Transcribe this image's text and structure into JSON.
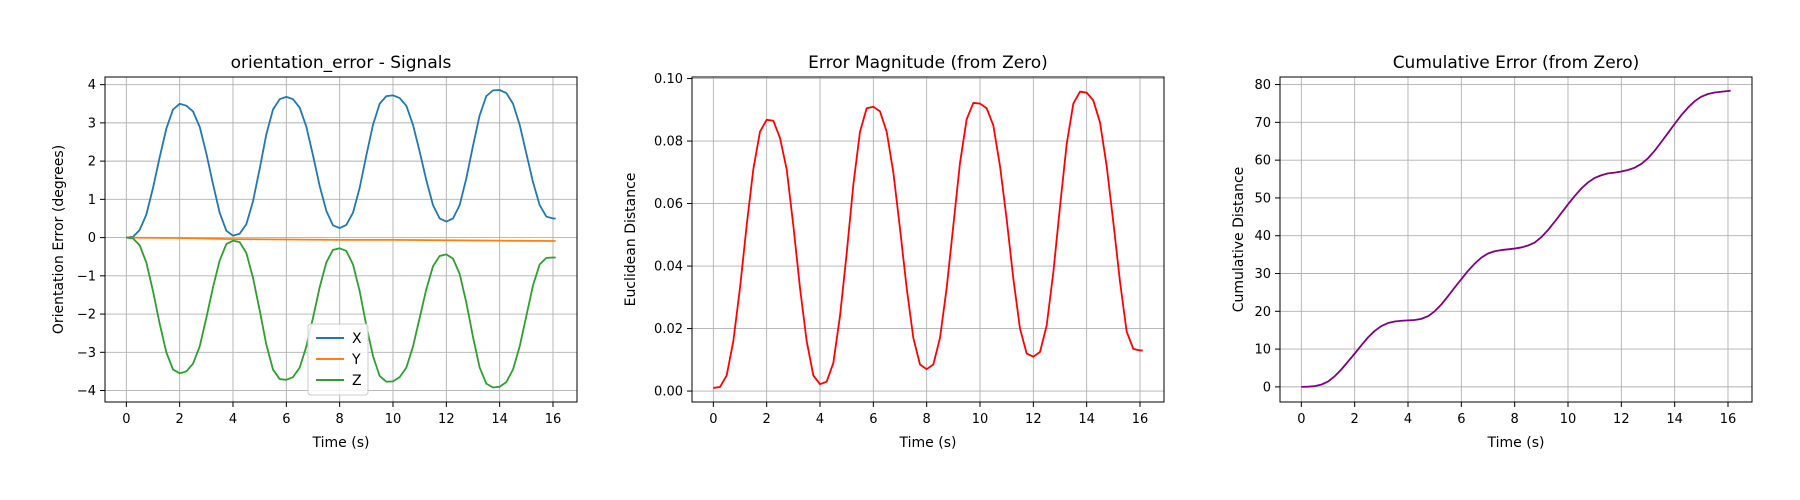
{
  "chart_data": [
    {
      "type": "line",
      "title": "orientation_error - Signals",
      "xlabel": "Time (s)",
      "ylabel": "Orientation Error (degrees)",
      "xlim": [
        -0.8,
        16.9
      ],
      "ylim": [
        -4.3,
        4.2
      ],
      "xticks": [
        0,
        2,
        4,
        6,
        8,
        10,
        12,
        14,
        16
      ],
      "yticks": [
        -4,
        -3,
        -2,
        -1,
        0,
        1,
        2,
        3,
        4
      ],
      "grid": true,
      "legend": "lower-center",
      "series": [
        {
          "name": "X",
          "color": "#1f77b4",
          "x": [
            0,
            0.25,
            0.5,
            0.75,
            1,
            1.25,
            1.5,
            1.75,
            2,
            2.25,
            2.5,
            2.75,
            3,
            3.25,
            3.5,
            3.75,
            4,
            4.25,
            4.5,
            4.75,
            5,
            5.25,
            5.5,
            5.75,
            6,
            6.25,
            6.5,
            6.75,
            7,
            7.25,
            7.5,
            7.75,
            8,
            8.25,
            8.5,
            8.75,
            9,
            9.25,
            9.5,
            9.75,
            10,
            10.25,
            10.5,
            10.75,
            11,
            11.25,
            11.5,
            11.75,
            12,
            12.25,
            12.5,
            12.75,
            13,
            13.25,
            13.5,
            13.75,
            14,
            14.25,
            14.5,
            14.75,
            15,
            15.25,
            15.5,
            15.75,
            16,
            16.1
          ],
          "y": [
            0.0,
            0.02,
            0.2,
            0.6,
            1.3,
            2.1,
            2.85,
            3.35,
            3.5,
            3.45,
            3.3,
            2.9,
            2.2,
            1.4,
            0.65,
            0.18,
            0.05,
            0.1,
            0.35,
            0.95,
            1.8,
            2.7,
            3.35,
            3.62,
            3.68,
            3.62,
            3.4,
            2.9,
            2.15,
            1.35,
            0.7,
            0.32,
            0.25,
            0.33,
            0.65,
            1.3,
            2.15,
            2.95,
            3.5,
            3.7,
            3.72,
            3.65,
            3.45,
            2.95,
            2.25,
            1.5,
            0.85,
            0.5,
            0.42,
            0.5,
            0.85,
            1.55,
            2.4,
            3.2,
            3.7,
            3.85,
            3.86,
            3.78,
            3.5,
            2.95,
            2.2,
            1.45,
            0.85,
            0.55,
            0.5,
            0.5
          ]
        },
        {
          "name": "Y",
          "color": "#ff7f0e",
          "x": [
            0,
            2,
            4,
            6,
            8,
            10,
            12,
            14,
            16,
            16.1
          ],
          "y": [
            0.0,
            -0.01,
            -0.04,
            -0.05,
            -0.06,
            -0.06,
            -0.07,
            -0.08,
            -0.09,
            -0.09
          ]
        },
        {
          "name": "Z",
          "color": "#2ca02c",
          "x": [
            0,
            0.25,
            0.5,
            0.75,
            1,
            1.25,
            1.5,
            1.75,
            2,
            2.25,
            2.5,
            2.75,
            3,
            3.25,
            3.5,
            3.75,
            4,
            4.25,
            4.5,
            4.75,
            5,
            5.25,
            5.5,
            5.75,
            6,
            6.25,
            6.5,
            6.75,
            7,
            7.25,
            7.5,
            7.75,
            8,
            8.25,
            8.5,
            8.75,
            9,
            9.25,
            9.5,
            9.75,
            10,
            10.25,
            10.5,
            10.75,
            11,
            11.25,
            11.5,
            11.75,
            12,
            12.25,
            12.5,
            12.75,
            13,
            13.25,
            13.5,
            13.75,
            14,
            14.25,
            14.5,
            14.75,
            15,
            15.25,
            15.5,
            15.75,
            16,
            16.1
          ],
          "y": [
            0.0,
            -0.02,
            -0.2,
            -0.65,
            -1.4,
            -2.25,
            -3.0,
            -3.45,
            -3.55,
            -3.5,
            -3.3,
            -2.85,
            -2.1,
            -1.3,
            -0.6,
            -0.17,
            -0.08,
            -0.12,
            -0.4,
            -1.05,
            -1.9,
            -2.8,
            -3.45,
            -3.7,
            -3.72,
            -3.65,
            -3.4,
            -2.85,
            -2.1,
            -1.3,
            -0.65,
            -0.32,
            -0.28,
            -0.35,
            -0.7,
            -1.4,
            -2.3,
            -3.1,
            -3.62,
            -3.77,
            -3.76,
            -3.65,
            -3.4,
            -2.85,
            -2.1,
            -1.35,
            -0.75,
            -0.48,
            -0.44,
            -0.55,
            -0.95,
            -1.7,
            -2.6,
            -3.4,
            -3.82,
            -3.92,
            -3.9,
            -3.78,
            -3.45,
            -2.85,
            -2.05,
            -1.25,
            -0.7,
            -0.53,
            -0.52,
            -0.52
          ]
        }
      ]
    },
    {
      "type": "line",
      "title": "Error Magnitude (from Zero)",
      "xlabel": "Time (s)",
      "ylabel": "Euclidean Distance",
      "xlim": [
        -0.8,
        16.9
      ],
      "ylim": [
        -0.0035,
        0.1005
      ],
      "xticks": [
        0,
        2,
        4,
        6,
        8,
        10,
        12,
        14,
        16
      ],
      "yticks": [
        0.0,
        0.02,
        0.04,
        0.06,
        0.08,
        0.1
      ],
      "ytick_labels": [
        "0.00",
        "0.02",
        "0.04",
        "0.06",
        "0.08",
        "0.10"
      ],
      "grid": true,
      "series": [
        {
          "color": "#ff0000",
          "x": [
            0,
            0.25,
            0.5,
            0.75,
            1,
            1.25,
            1.5,
            1.75,
            2,
            2.25,
            2.5,
            2.75,
            3,
            3.25,
            3.5,
            3.75,
            4,
            4.25,
            4.5,
            4.75,
            5,
            5.25,
            5.5,
            5.75,
            6,
            6.25,
            6.5,
            6.75,
            7,
            7.25,
            7.5,
            7.75,
            8,
            8.25,
            8.5,
            8.75,
            9,
            9.25,
            9.5,
            9.75,
            10,
            10.25,
            10.5,
            10.75,
            11,
            11.25,
            11.5,
            11.75,
            12,
            12.25,
            12.5,
            12.75,
            13,
            13.25,
            13.5,
            13.75,
            14,
            14.25,
            14.5,
            14.75,
            15,
            15.25,
            15.5,
            15.75,
            16,
            16.1
          ],
          "y": [
            0.001,
            0.0013,
            0.005,
            0.016,
            0.033,
            0.053,
            0.071,
            0.083,
            0.0868,
            0.0865,
            0.081,
            0.071,
            0.053,
            0.033,
            0.016,
            0.005,
            0.0022,
            0.003,
            0.009,
            0.024,
            0.044,
            0.066,
            0.083,
            0.0905,
            0.091,
            0.0895,
            0.083,
            0.07,
            0.052,
            0.033,
            0.017,
            0.0085,
            0.007,
            0.0085,
            0.017,
            0.033,
            0.053,
            0.073,
            0.087,
            0.0922,
            0.092,
            0.0905,
            0.085,
            0.072,
            0.055,
            0.036,
            0.02,
            0.012,
            0.011,
            0.0125,
            0.021,
            0.038,
            0.059,
            0.079,
            0.092,
            0.0958,
            0.0955,
            0.093,
            0.086,
            0.072,
            0.054,
            0.035,
            0.019,
            0.0135,
            0.013,
            0.013
          ]
        }
      ]
    },
    {
      "type": "line",
      "title": "Cumulative Error (from Zero)",
      "xlabel": "Time (s)",
      "ylabel": "Cumulative Distance",
      "xlim": [
        -0.8,
        16.9
      ],
      "ylim": [
        -4,
        82
      ],
      "xticks": [
        0,
        2,
        4,
        6,
        8,
        10,
        12,
        14,
        16
      ],
      "yticks": [
        0,
        10,
        20,
        30,
        40,
        50,
        60,
        70,
        80
      ],
      "grid": true,
      "series": [
        {
          "color": "#800080",
          "x": [
            0,
            0.25,
            0.5,
            0.75,
            1,
            1.25,
            1.5,
            1.75,
            2,
            2.25,
            2.5,
            2.75,
            3,
            3.25,
            3.5,
            3.75,
            4,
            4.25,
            4.5,
            4.75,
            5,
            5.25,
            5.5,
            5.75,
            6,
            6.25,
            6.5,
            6.75,
            7,
            7.25,
            7.5,
            7.75,
            8,
            8.25,
            8.5,
            8.75,
            9,
            9.25,
            9.5,
            9.75,
            10,
            10.25,
            10.5,
            10.75,
            11,
            11.25,
            11.5,
            11.75,
            12,
            12.25,
            12.5,
            12.75,
            13,
            13.25,
            13.5,
            13.75,
            14,
            14.25,
            14.5,
            14.75,
            15,
            15.25,
            15.5,
            15.75,
            16,
            16.1
          ],
          "y": [
            0.0,
            0.05,
            0.2,
            0.6,
            1.4,
            2.8,
            4.6,
            6.7,
            8.8,
            11.0,
            13.1,
            14.8,
            16.1,
            16.9,
            17.3,
            17.5,
            17.6,
            17.7,
            18.0,
            18.7,
            20.0,
            21.8,
            24.0,
            26.3,
            28.5,
            30.7,
            32.6,
            34.2,
            35.3,
            35.9,
            36.2,
            36.4,
            36.6,
            36.9,
            37.4,
            38.2,
            39.6,
            41.5,
            43.7,
            46.0,
            48.3,
            50.5,
            52.5,
            54.1,
            55.3,
            56.0,
            56.5,
            56.7,
            57.0,
            57.4,
            58.0,
            59.0,
            60.5,
            62.5,
            64.8,
            67.2,
            69.6,
            71.9,
            73.9,
            75.6,
            76.8,
            77.5,
            77.9,
            78.1,
            78.3,
            78.4
          ]
        }
      ]
    }
  ]
}
